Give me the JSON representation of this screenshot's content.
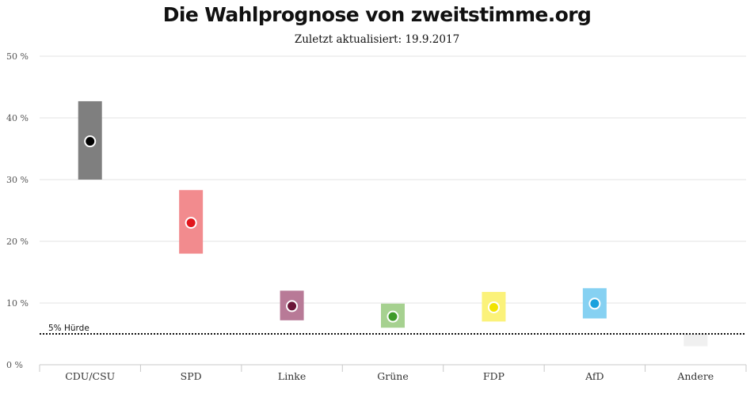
{
  "chart_data": {
    "type": "range",
    "title": "Die Wahlprognose von zweitstimme.org",
    "subtitle": "Zuletzt aktualisiert: 19.9.2017",
    "xlabel": "",
    "ylabel": "",
    "ylim": [
      0,
      50
    ],
    "yticks": [
      "0 %",
      "10 %",
      "20 %",
      "30 %",
      "40 %",
      "50 %"
    ],
    "grid": true,
    "categories": [
      "CDU/CSU",
      "SPD",
      "Linke",
      "Grüne",
      "FDP",
      "AfD",
      "Andere"
    ],
    "series": [
      {
        "low": 30.0,
        "high": 42.7,
        "point": 36.2,
        "range_color": "#7f7f7f",
        "point_color": "#000000"
      },
      {
        "low": 18.0,
        "high": 28.3,
        "point": 23.0,
        "range_color": "#f28b8e",
        "point_color": "#e1161c"
      },
      {
        "low": 7.2,
        "high": 12.0,
        "point": 9.5,
        "range_color": "#b87a97",
        "point_color": "#6b1638"
      },
      {
        "low": 6.0,
        "high": 9.9,
        "point": 7.8,
        "range_color": "#a6d190",
        "point_color": "#3f9b2a"
      },
      {
        "low": 7.0,
        "high": 11.8,
        "point": 9.3,
        "range_color": "#fbf27a",
        "point_color": "#f1e300"
      },
      {
        "low": 7.5,
        "high": 12.4,
        "point": 9.9,
        "range_color": "#86d1f2",
        "point_color": "#1aa1dd"
      },
      {
        "low": 3.0,
        "high": 5.0,
        "point": null,
        "range_color": "#f0f0f0",
        "point_color": null
      }
    ],
    "threshold": {
      "value": 5,
      "label": "5% Hürde"
    }
  }
}
